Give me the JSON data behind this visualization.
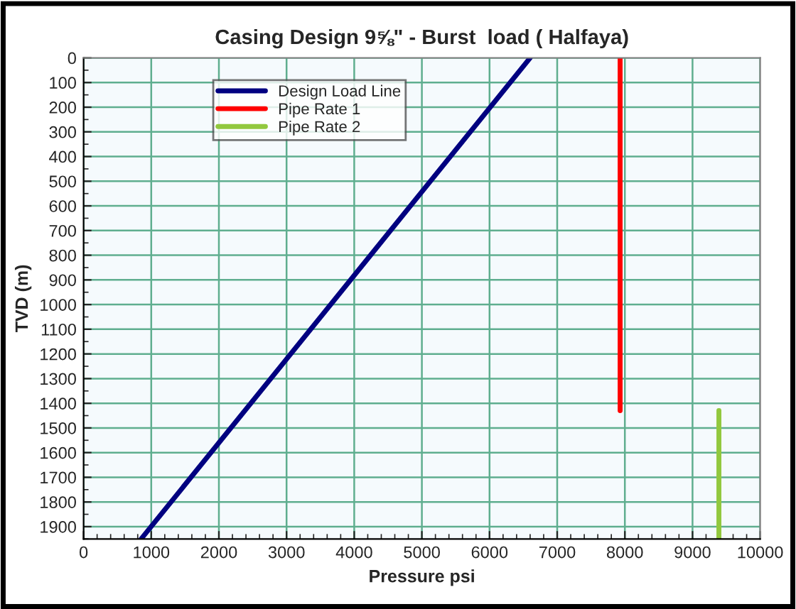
{
  "chart_data": {
    "type": "line",
    "title": "Casing Design 9⅝\" - Burst  load ( Halfaya)",
    "xlabel": "Pressure psi",
    "ylabel": "TVD (m)",
    "series": [
      {
        "name": "Design Load Line",
        "color": "#000080",
        "x": [
          6600,
          850
        ],
        "values": [
          0,
          1950
        ]
      },
      {
        "name": "Pipe Rate 1",
        "color": "#ff0000",
        "x": [
          7930,
          7930
        ],
        "values": [
          0,
          1430
        ]
      },
      {
        "name": "Pipe Rate 2",
        "color": "#92c83e",
        "x": [
          9390,
          9390
        ],
        "values": [
          1430,
          1950
        ]
      }
    ],
    "xlim": [
      0,
      10000
    ],
    "xticks": [
      0,
      1000,
      2000,
      3000,
      4000,
      5000,
      6000,
      7000,
      8000,
      9000,
      10000
    ],
    "ylim": [
      1950,
      0
    ],
    "yticks": [
      0,
      100,
      200,
      300,
      400,
      500,
      600,
      700,
      800,
      900,
      1000,
      1100,
      1200,
      1300,
      1400,
      1500,
      1600,
      1700,
      1800,
      1900
    ],
    "grid": true,
    "legend": "top left",
    "marker": "none",
    "line_style": "solid"
  }
}
